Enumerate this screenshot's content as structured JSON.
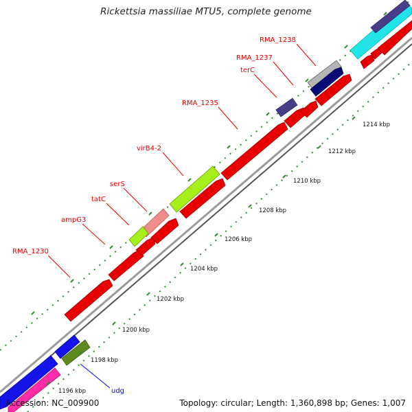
{
  "title": "Rickettsia massiliae MTU5, complete genome",
  "accession": "Accession: NC_009900",
  "summary": "Topology: circular; Length: 1,360,898 bp; Genes: 1,007",
  "colors": {
    "background": "#ffffff",
    "backbone": "#8c8c8c",
    "forward_strand": "#e80000",
    "label_red": "#e00000",
    "label_blue": "#0000dd",
    "tick_green": "#2e8b2e"
  },
  "gene_labels": [
    {
      "text": "RMA_1238",
      "color": "#e00000"
    },
    {
      "text": "RMA_1237",
      "color": "#e00000"
    },
    {
      "text": "terC",
      "color": "#e00000"
    },
    {
      "text": "RMA_1235",
      "color": "#e00000"
    },
    {
      "text": "virB4-2",
      "color": "#e00000"
    },
    {
      "text": "serS",
      "color": "#e00000"
    },
    {
      "text": "tatC",
      "color": "#e00000"
    },
    {
      "text": "ampG3",
      "color": "#e00000"
    },
    {
      "text": "RMA_1230",
      "color": "#e00000"
    },
    {
      "text": "udg",
      "color": "#0000dd"
    }
  ],
  "scale_labels": [
    "1214 kbp",
    "1212 kbp",
    "1210 kbp",
    "1208 kbp",
    "1206 kbp",
    "1204 kbp",
    "1202 kbp",
    "1200 kbp",
    "1198 kbp",
    "1196 kbp"
  ]
}
